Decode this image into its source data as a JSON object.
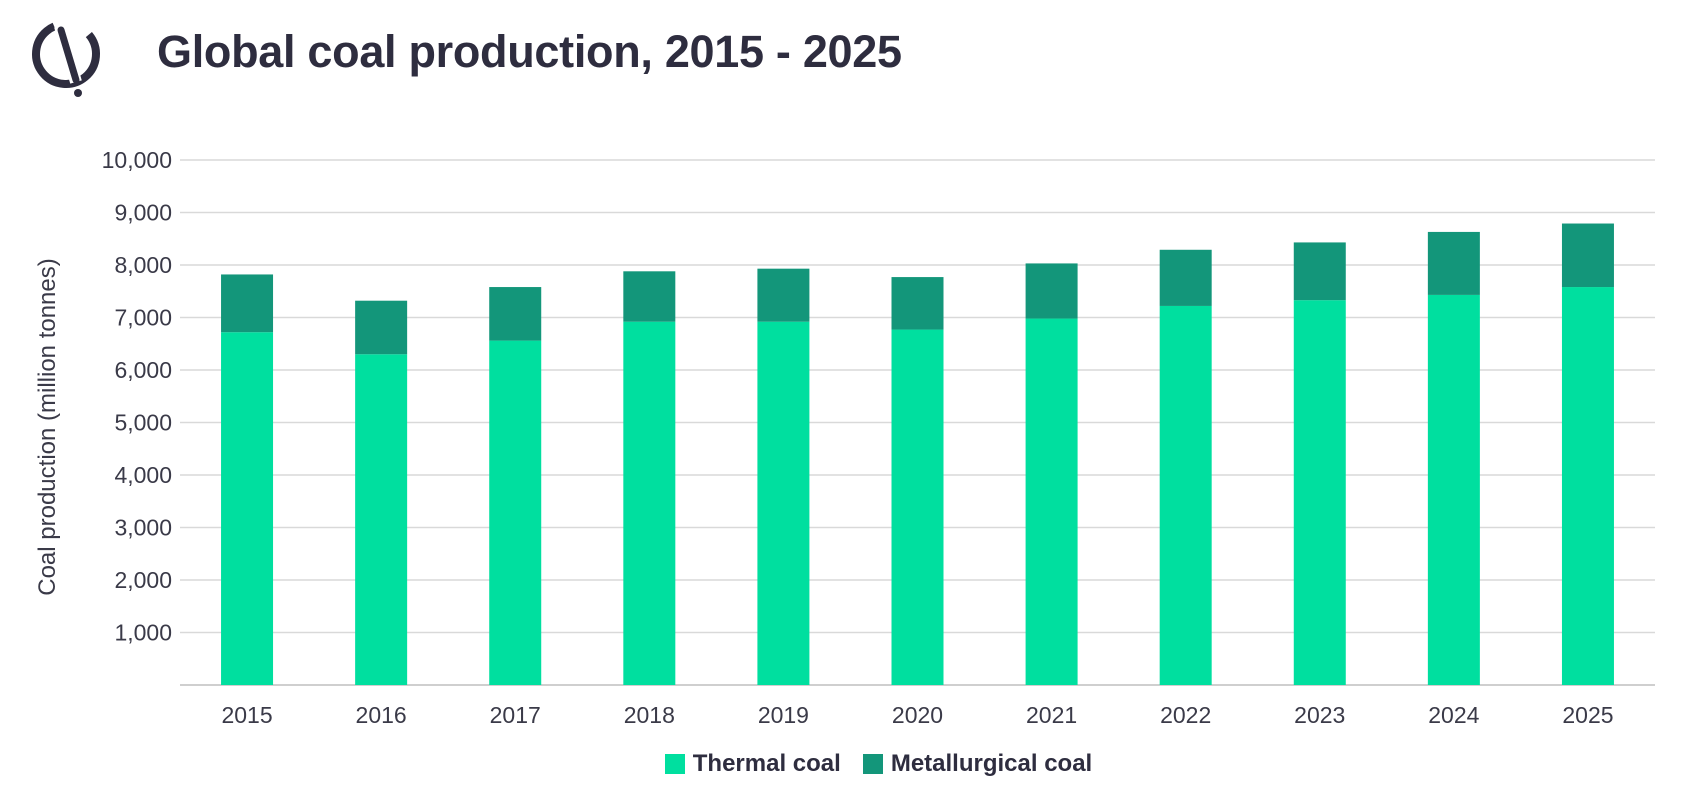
{
  "header": {
    "title": "Global coal production, 2015 - 2025",
    "logo_icon": "logo-icon"
  },
  "colors": {
    "thermal": "#00df9f",
    "metallurgical": "#13967a",
    "grid": "#d9d9d9",
    "text": "#2e2d3f"
  },
  "chart_data": {
    "type": "bar",
    "stacked": true,
    "title": "Global coal production, 2015 - 2025",
    "xlabel": "",
    "ylabel": "Coal production (million tonnes)",
    "categories": [
      "2015",
      "2016",
      "2017",
      "2018",
      "2019",
      "2020",
      "2021",
      "2022",
      "2023",
      "2024",
      "2025"
    ],
    "series": [
      {
        "name": "Thermal coal",
        "values": [
          6720,
          6300,
          6560,
          6920,
          6920,
          6770,
          6980,
          7220,
          7330,
          7430,
          7580
        ]
      },
      {
        "name": "Metallurgical coal",
        "values": [
          1100,
          1020,
          1020,
          960,
          1010,
          1000,
          1050,
          1070,
          1100,
          1200,
          1210
        ]
      }
    ],
    "ylim": [
      0,
      10000
    ],
    "yticks": [
      1000,
      2000,
      3000,
      4000,
      5000,
      6000,
      7000,
      8000,
      9000,
      10000
    ],
    "ytick_labels": [
      "1,000",
      "2,000",
      "3,000",
      "4,000",
      "5,000",
      "6,000",
      "7,000",
      "8,000",
      "9,000",
      "10,000"
    ],
    "grid": true,
    "legend_position": "bottom-center"
  }
}
